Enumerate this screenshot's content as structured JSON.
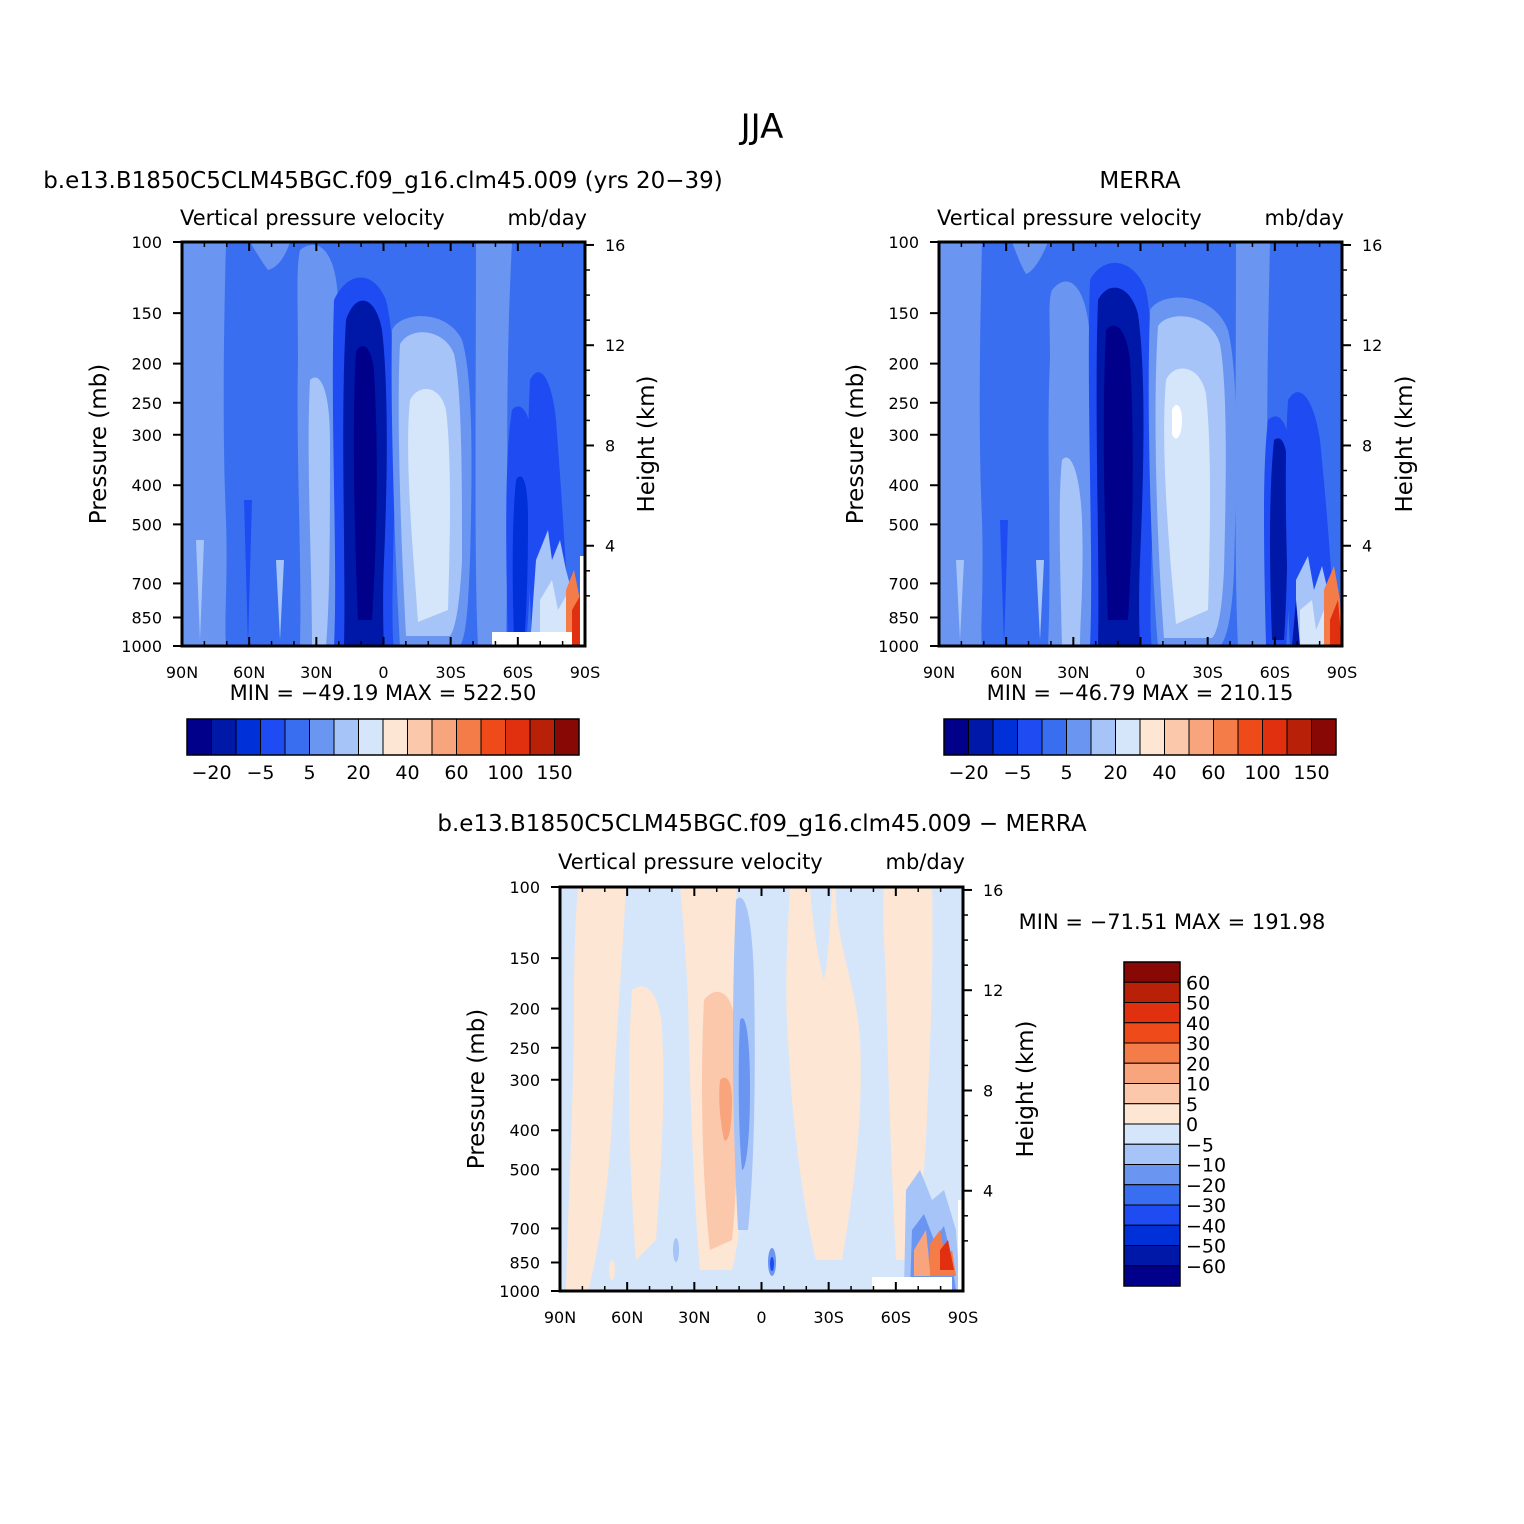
{
  "figure": {
    "title": "JJA"
  },
  "chart_data": [
    {
      "type": "heatmap",
      "id": "model",
      "case_title": "b.e13.B1850C5CLM45BGC.f09_g16.clm45.009 (yrs 20−39)",
      "variable": "Vertical pressure velocity",
      "units": "mb/day",
      "ylabel": "Pressure (mb)",
      "ylabel_right": "Height (km)",
      "x_ticks": [
        "90N",
        "60N",
        "30N",
        "0",
        "30S",
        "60S",
        "90S"
      ],
      "y_ticks": [
        "100",
        "150",
        "200",
        "250",
        "300",
        "400",
        "500",
        "700",
        "850",
        "1000"
      ],
      "y_ticks_right": [
        "16",
        "12",
        "8",
        "4"
      ],
      "xlim": [
        90,
        -90
      ],
      "ylim": [
        1000,
        100
      ],
      "y_scale": "log",
      "stats": "MIN = −49.19   MAX = 522.50",
      "min": -49.19,
      "max": 522.5,
      "colorbar": {
        "orientation": "horizontal",
        "labels": [
          "−20",
          "−5",
          "5",
          "20",
          "40",
          "60",
          "100",
          "150"
        ]
      }
    },
    {
      "type": "heatmap",
      "id": "obs",
      "case_title": "MERRA",
      "variable": "Vertical pressure velocity",
      "units": "mb/day",
      "ylabel": "Pressure (mb)",
      "ylabel_right": "Height (km)",
      "x_ticks": [
        "90N",
        "60N",
        "30N",
        "0",
        "30S",
        "60S",
        "90S"
      ],
      "y_ticks": [
        "100",
        "150",
        "200",
        "250",
        "300",
        "400",
        "500",
        "700",
        "850",
        "1000"
      ],
      "y_ticks_right": [
        "16",
        "12",
        "8",
        "4"
      ],
      "xlim": [
        90,
        -90
      ],
      "ylim": [
        1000,
        100
      ],
      "y_scale": "log",
      "stats": "MIN = −46.79   MAX = 210.15",
      "min": -46.79,
      "max": 210.15,
      "colorbar": {
        "orientation": "horizontal",
        "labels": [
          "−20",
          "−5",
          "5",
          "20",
          "40",
          "60",
          "100",
          "150"
        ]
      }
    },
    {
      "type": "heatmap",
      "id": "diff",
      "case_title": "b.e13.B1850C5CLM45BGC.f09_g16.clm45.009 − MERRA",
      "variable": "Vertical pressure velocity",
      "units": "mb/day",
      "ylabel": "Pressure (mb)",
      "ylabel_right": "Height (km)",
      "x_ticks": [
        "90N",
        "60N",
        "30N",
        "0",
        "30S",
        "60S",
        "90S"
      ],
      "y_ticks": [
        "100",
        "150",
        "200",
        "250",
        "300",
        "400",
        "500",
        "700",
        "850",
        "1000"
      ],
      "y_ticks_right": [
        "16",
        "12",
        "8",
        "4"
      ],
      "xlim": [
        90,
        -90
      ],
      "ylim": [
        1000,
        100
      ],
      "y_scale": "log",
      "stats": "MIN = −71.51   MAX = 191.98",
      "min": -71.51,
      "max": 191.98,
      "colorbar": {
        "orientation": "vertical",
        "labels": [
          "60",
          "50",
          "40",
          "30",
          "20",
          "10",
          "5",
          "0",
          "−5",
          "−10",
          "−20",
          "−30",
          "−40",
          "−50",
          "−60"
        ]
      }
    }
  ],
  "colors": {
    "abs_scale": [
      "#00008a",
      "#0018a8",
      "#0030d8",
      "#1e4cf2",
      "#3a6ef0",
      "#6a96f2",
      "#a6c4f8",
      "#d6e6fa",
      "#fde6d4",
      "#fcc8ac",
      "#f8a47c",
      "#f47c48",
      "#ee4a1a",
      "#e03010",
      "#b82008",
      "#880806"
    ],
    "diff_scale": [
      "#00008a",
      "#0018a8",
      "#0030d8",
      "#1e4cf2",
      "#3a6ef0",
      "#6a96f2",
      "#a6c4f8",
      "#d6e6fa",
      "#fde6d4",
      "#fcc8ac",
      "#f8a47c",
      "#f47c48",
      "#e03010",
      "#b82008",
      "#880806"
    ]
  }
}
